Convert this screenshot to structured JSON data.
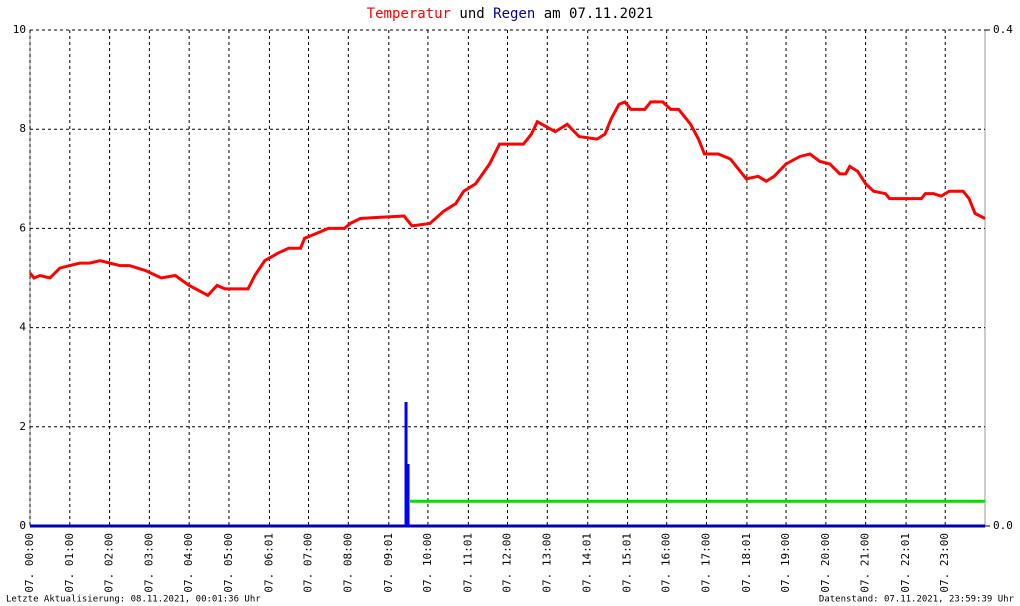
{
  "chart_data": {
    "type": "line",
    "title_parts": [
      "Temperatur",
      "und",
      "Regen",
      "am 07.11.2021"
    ],
    "title_colors": [
      "#ff0000",
      "#000000",
      "#000099",
      "#000000"
    ],
    "footer_left": "Letzte Aktualisierung: 08.11.2021, 00:01:36 Uhr",
    "footer_right": "Datenstand: 07.11.2021, 23:59:39 Uhr",
    "xlim": [
      0,
      24
    ],
    "xticks": [
      {
        "value": 0,
        "label": "07. 00:00"
      },
      {
        "value": 1,
        "label": "07. 01:00"
      },
      {
        "value": 2,
        "label": "07. 02:00"
      },
      {
        "value": 3,
        "label": "07. 03:00"
      },
      {
        "value": 4,
        "label": "07. 04:00"
      },
      {
        "value": 5,
        "label": "07. 05:00"
      },
      {
        "value": 6.0167,
        "label": "07. 06:01"
      },
      {
        "value": 7,
        "label": "07. 07:00"
      },
      {
        "value": 8,
        "label": "07. 08:00"
      },
      {
        "value": 9.0167,
        "label": "07. 09:01"
      },
      {
        "value": 10,
        "label": "07. 10:00"
      },
      {
        "value": 11.0167,
        "label": "07. 11:01"
      },
      {
        "value": 12,
        "label": "07. 12:00"
      },
      {
        "value": 13,
        "label": "07. 13:00"
      },
      {
        "value": 14.0167,
        "label": "07. 14:01"
      },
      {
        "value": 15.0167,
        "label": "07. 15:01"
      },
      {
        "value": 16,
        "label": "07. 16:00"
      },
      {
        "value": 17,
        "label": "07. 17:00"
      },
      {
        "value": 18.0167,
        "label": "07. 18:01"
      },
      {
        "value": 19,
        "label": "07. 19:00"
      },
      {
        "value": 20,
        "label": "07. 20:00"
      },
      {
        "value": 21,
        "label": "07. 21:00"
      },
      {
        "value": 22.0167,
        "label": "07. 22:01"
      },
      {
        "value": 23,
        "label": "07. 23:00"
      }
    ],
    "ylim": [
      0,
      10
    ],
    "yticks": [
      0,
      2,
      4,
      6,
      8,
      10
    ],
    "y2lim": [
      0,
      0.4
    ],
    "y2ticks": [
      {
        "value": 0,
        "label": "0.0"
      },
      {
        "value": 0.4,
        "label": "0.4"
      }
    ],
    "grid": true,
    "series": [
      {
        "type": "line",
        "color": "#ff0000",
        "x": [
          0,
          0.1,
          0.25,
          0.5,
          0.75,
          1.0,
          1.25,
          1.5,
          1.76,
          2.26,
          2.5,
          2.9,
          3.3,
          3.65,
          4.0,
          4.47,
          4.7,
          4.9,
          5.48,
          5.65,
          5.9,
          6.23,
          6.5,
          6.8,
          6.9,
          7.2,
          7.5,
          7.9,
          8.05,
          8.3,
          8.7,
          9.4,
          9.6,
          10.05,
          10.4,
          10.7,
          10.9,
          11.2,
          11.55,
          11.8,
          12.4,
          12.6,
          12.75,
          13.2,
          13.5,
          13.8,
          14.25,
          14.45,
          14.6,
          14.8,
          14.95,
          15.1,
          15.45,
          15.6,
          15.9,
          16.1,
          16.3,
          16.6,
          16.8,
          16.95,
          17.3,
          17.6,
          17.7,
          18.0,
          18.3,
          18.5,
          18.7,
          19.0,
          19.35,
          19.6,
          19.85,
          20.1,
          20.35,
          20.5,
          20.6,
          20.8,
          21.0,
          21.2,
          21.5,
          21.6,
          22.4,
          22.5,
          22.7,
          22.9,
          23.1,
          23.45,
          23.6,
          23.75,
          24.0
        ],
        "values": [
          5.1,
          5.0,
          5.05,
          5.0,
          5.2,
          5.25,
          5.3,
          5.3,
          5.35,
          5.25,
          5.25,
          5.15,
          5.0,
          5.05,
          4.85,
          4.65,
          4.85,
          4.78,
          4.78,
          5.05,
          5.35,
          5.5,
          5.6,
          5.6,
          5.8,
          5.9,
          6.0,
          6.0,
          6.1,
          6.2,
          6.22,
          6.25,
          6.05,
          6.1,
          6.35,
          6.5,
          6.75,
          6.9,
          7.3,
          7.7,
          7.7,
          7.9,
          8.15,
          7.95,
          8.1,
          7.85,
          7.8,
          7.9,
          8.2,
          8.5,
          8.55,
          8.4,
          8.4,
          8.55,
          8.55,
          8.4,
          8.4,
          8.1,
          7.8,
          7.5,
          7.5,
          7.4,
          7.3,
          7.0,
          7.05,
          6.95,
          7.05,
          7.3,
          7.45,
          7.5,
          7.35,
          7.3,
          7.1,
          7.1,
          7.25,
          7.15,
          6.9,
          6.75,
          6.7,
          6.6,
          6.6,
          6.7,
          6.7,
          6.65,
          6.75,
          6.75,
          6.6,
          6.3,
          6.2
        ]
      },
      {
        "type": "bar",
        "color": "#0000ff",
        "axis": "y2",
        "x": [
          9.45,
          9.5
        ],
        "values": [
          0.1,
          0.05
        ]
      },
      {
        "type": "line",
        "color": "#00dd00",
        "axis": "y2",
        "x": [
          9.55,
          24
        ],
        "values": [
          0.02,
          0.02
        ]
      }
    ]
  }
}
